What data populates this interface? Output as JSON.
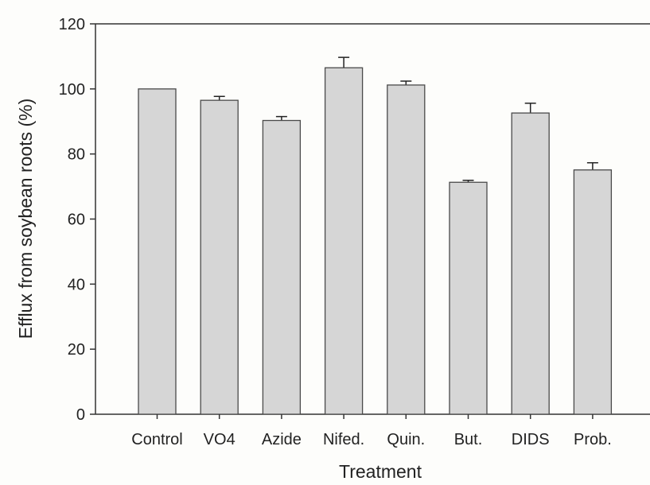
{
  "chart_data": {
    "type": "bar",
    "title": "",
    "xlabel": "Treatment",
    "ylabel": "Efflux from soybean roots (%)",
    "categories": [
      "Control",
      "VO4",
      "Azide",
      "Nifed.",
      "Quin.",
      "But.",
      "DIDS",
      "Prob."
    ],
    "values": [
      100,
      96.5,
      90.3,
      106.5,
      101.2,
      71.3,
      92.6,
      75.1
    ],
    "errors": [
      0,
      1.2,
      1.2,
      3.2,
      1.2,
      0.6,
      3.0,
      2.2
    ],
    "ylim": [
      0,
      120
    ],
    "yticks": [
      0,
      20,
      40,
      60,
      80,
      100,
      120
    ],
    "grid": false,
    "legend": "none",
    "colors": {
      "bar_fill": "#d6d6d6",
      "bar_stroke": "#4a4a4a",
      "axis": "#333333"
    }
  }
}
